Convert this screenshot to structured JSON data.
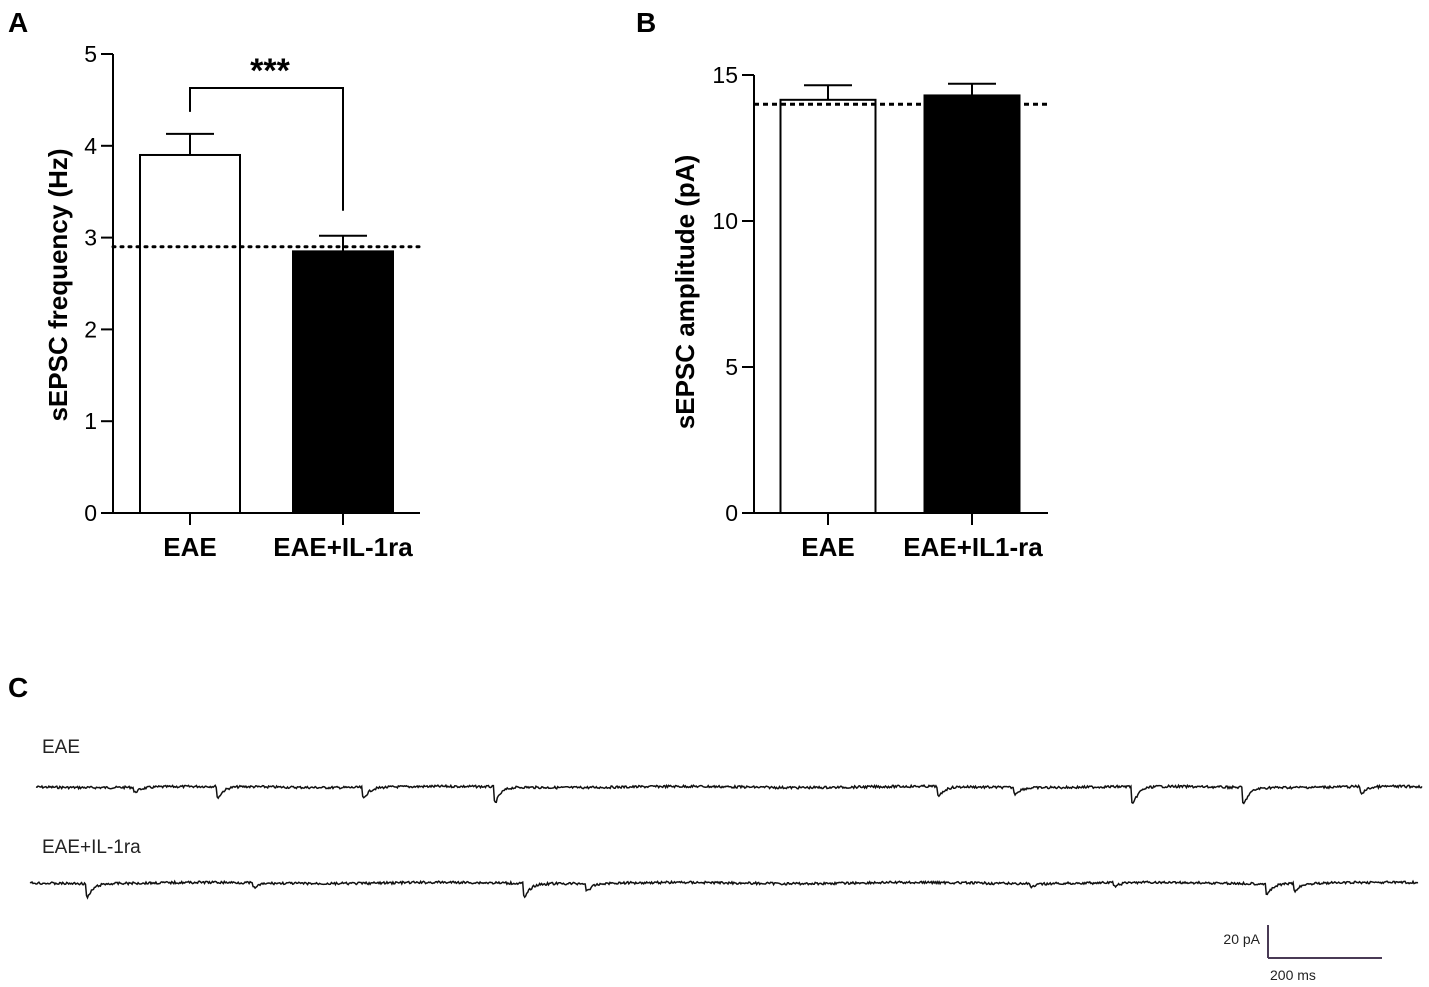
{
  "chart_data": [
    {
      "panel": "A",
      "type": "bar",
      "categories": [
        "EAE",
        "EAE+IL-1ra"
      ],
      "values": [
        3.9,
        2.85
      ],
      "errors": [
        0.23,
        0.17
      ],
      "fills": [
        "#ffffff",
        "#000000"
      ],
      "ylabel": "sEPSC frequency (Hz)",
      "ylim": [
        0,
        5
      ],
      "yticks": [
        0,
        1,
        2,
        3,
        4,
        5
      ],
      "reference_line": 2.9,
      "significance": "***"
    },
    {
      "panel": "B",
      "type": "bar",
      "categories": [
        "EAE",
        "EAE+IL1-ra"
      ],
      "values": [
        14.15,
        14.3
      ],
      "errors": [
        0.5,
        0.4
      ],
      "fills": [
        "#ffffff",
        "#000000"
      ],
      "ylabel": "sEPSC amplitude (pA)",
      "ylim": [
        0,
        15
      ],
      "yticks": [
        0,
        5,
        10,
        15
      ],
      "reference_line": 14.0
    }
  ],
  "traces": {
    "panel": "C",
    "items": [
      {
        "label": "EAE",
        "events": [
          [
            0.07,
            8
          ],
          [
            0.13,
            18
          ],
          [
            0.235,
            17
          ],
          [
            0.33,
            25
          ],
          [
            0.65,
            16
          ],
          [
            0.705,
            10
          ],
          [
            0.79,
            28
          ],
          [
            0.87,
            26
          ],
          [
            0.955,
            11
          ]
        ]
      },
      {
        "label": "EAE+IL-1ra",
        "events": [
          [
            0.04,
            22
          ],
          [
            0.16,
            8
          ],
          [
            0.355,
            22
          ],
          [
            0.4,
            12
          ],
          [
            0.72,
            6
          ],
          [
            0.78,
            6
          ],
          [
            0.89,
            17
          ],
          [
            0.91,
            12
          ]
        ]
      }
    ],
    "scale_bar": {
      "y_label": "20 pA",
      "x_label": "200 ms"
    }
  }
}
